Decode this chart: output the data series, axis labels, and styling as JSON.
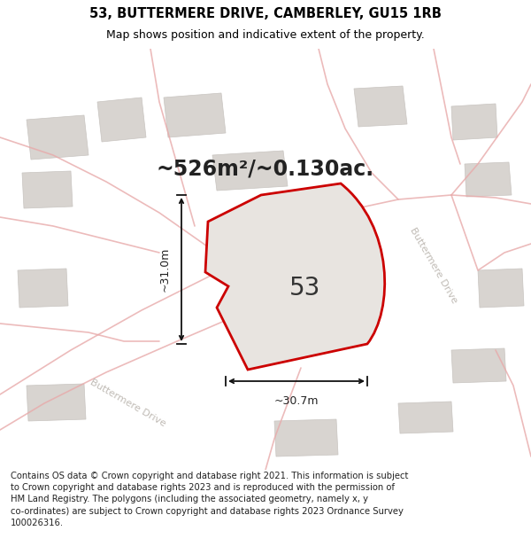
{
  "title": "53, BUTTERMERE DRIVE, CAMBERLEY, GU15 1RB",
  "subtitle": "Map shows position and indicative extent of the property.",
  "area_text": "~526m²/~0.130ac.",
  "property_label": "53",
  "dim_vertical": "~31.0m",
  "dim_horizontal": "~30.7m",
  "road_label": "Buttermere Drive",
  "copyright_text": "Contains OS data © Crown copyright and database right 2021. This information is subject to Crown copyright and database rights 2023 and is reproduced with the permission of HM Land Registry. The polygons (including the associated geometry, namely x, y co-ordinates) are subject to Crown copyright and database rights 2023 Ordnance Survey 100026316.",
  "map_bg": "#f2eeea",
  "property_fill": "#e8e4e0",
  "property_edge": "#cc0000",
  "road_color": "#e8aaaa",
  "building_color": "#d8d4d0",
  "dim_color": "#111111",
  "title_fs": 10.5,
  "subtitle_fs": 9,
  "area_fs": 17,
  "label_fs": 20,
  "copyright_fs": 7.2,
  "road_label_color": "#c0bbb5"
}
